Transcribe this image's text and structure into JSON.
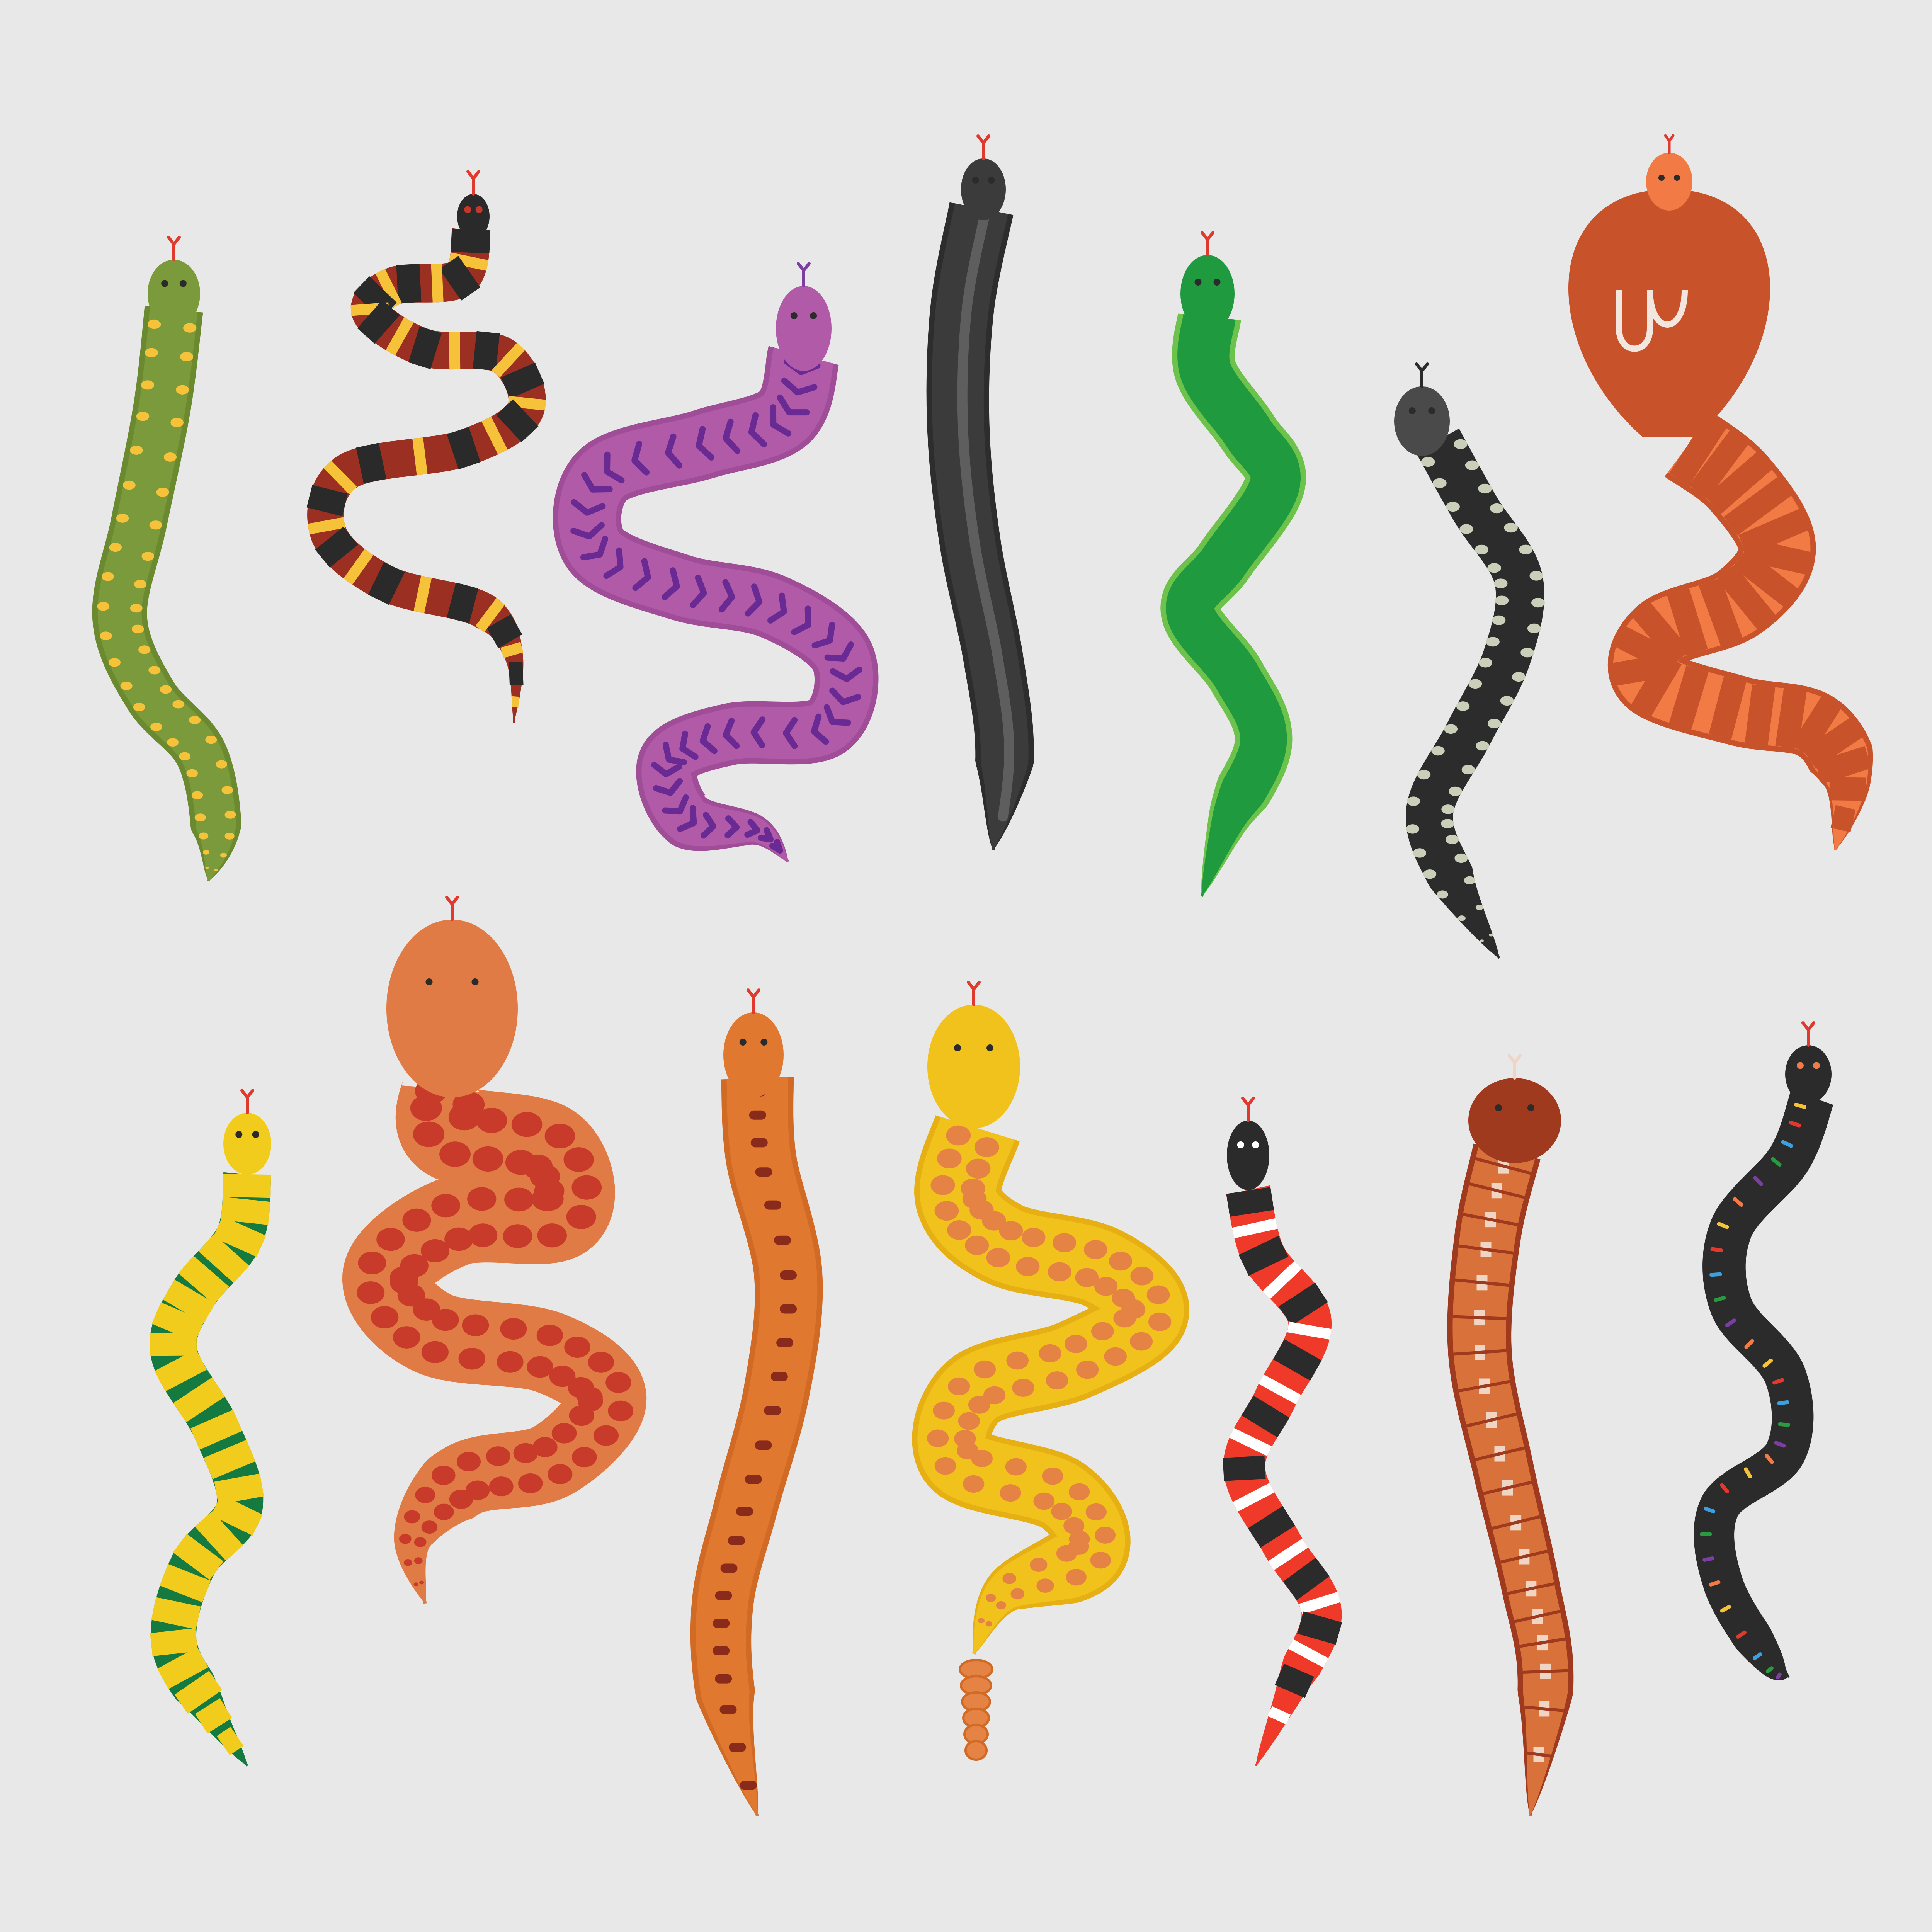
{
  "background": "#e8e8e8",
  "tongue_color": "#e03a2f",
  "snakes": [
    {
      "name": "olive-spotted-snake",
      "icon": "snake-icon",
      "body": "#7b9a3b",
      "outline": "#6b8a2f",
      "pattern": "spots",
      "pattern_color": "#f6c23a",
      "head": "#7b9a3b",
      "eyes": "#2b2b2b",
      "tongue": "#e03a2f"
    },
    {
      "name": "banded-milk-snake",
      "icon": "snake-icon",
      "body": "#9a2f22",
      "outline": "#9a2f22",
      "pattern": "bands",
      "pattern_color": "#2a2a2a",
      "pattern_color2": "#f6c23a",
      "head": "#2a2a2a",
      "eyes": "#c0392b",
      "tongue": "#e03a2f"
    },
    {
      "name": "purple-chevron-snake",
      "icon": "snake-icon",
      "body": "#b05aa8",
      "outline": "#a04d98",
      "pattern": "chevrons",
      "pattern_color": "#6a2a93",
      "head": "#b05aa8",
      "eyes": "#2b2b2b",
      "tongue": "#7a3fa0"
    },
    {
      "name": "black-mamba-snake",
      "icon": "snake-icon",
      "body": "#3b3b3b",
      "outline": "#2d2d2d",
      "pattern": "stripe",
      "pattern_color": "#5e5e5e",
      "head": "#3b3b3b",
      "eyes": "#2b2b2b",
      "tongue": "#e03a2f"
    },
    {
      "name": "green-vine-snake",
      "icon": "snake-icon",
      "body": "#1f9a3f",
      "outline": "#6cc24a",
      "pattern": "none",
      "pattern_color": "#1f9a3f",
      "head": "#1f9a3f",
      "eyes": "#2b2b2b",
      "tongue": "#e03a2f"
    },
    {
      "name": "black-dotted-snake",
      "icon": "snake-icon",
      "body": "#2c2c2c",
      "outline": "#2c2c2c",
      "pattern": "dots",
      "pattern_color": "#c9cfb8",
      "head": "#4a4a4a",
      "eyes": "#2b2b2b",
      "tongue": "#2b2b2b"
    },
    {
      "name": "orange-cobra",
      "icon": "cobra-icon",
      "body": "#f27a45",
      "outline": "#c8522a",
      "pattern": "bands",
      "pattern_color": "#c8522a",
      "head": "#f27a45",
      "eyes": "#2b2b2b",
      "tongue": "#e03a2f"
    },
    {
      "name": "green-yellow-banded-snake",
      "icon": "snake-icon",
      "body": "#157a3f",
      "outline": "#157a3f",
      "pattern": "bands",
      "pattern_color": "#f2cc1c",
      "head": "#f2cc1c",
      "eyes": "#2b2b2b",
      "tongue": "#e03a2f"
    },
    {
      "name": "corn-snake",
      "icon": "snake-icon",
      "body": "#e07b45",
      "outline": "#e07b45",
      "pattern": "blotches",
      "pattern_color": "#c83a2a",
      "head": "#e07b45",
      "eyes": "#2b2b2b",
      "tongue": "#e03a2f"
    },
    {
      "name": "orange-dashed-snake",
      "icon": "snake-icon",
      "body": "#e0782f",
      "outline": "#d06a25",
      "pattern": "dashes",
      "pattern_color": "#8a2a1a",
      "head": "#e0782f",
      "eyes": "#2b2b2b",
      "tongue": "#e03a2f"
    },
    {
      "name": "yellow-rattlesnake",
      "icon": "rattlesnake-icon",
      "body": "#f2c21c",
      "outline": "#e6b015",
      "pattern": "blotches",
      "pattern_color": "#e58345",
      "head": "#f2c21c",
      "eyes": "#2b2b2b",
      "tongue": "#e03a2f"
    },
    {
      "name": "red-coral-snake",
      "icon": "snake-icon",
      "body": "#ef3a2a",
      "outline": "#ef3a2a",
      "pattern": "bands",
      "pattern_color": "#2b2b2b",
      "pattern_color2": "#ffffff",
      "head": "#2b2b2b",
      "eyes": "#ffffff",
      "tongue": "#e03a2f"
    },
    {
      "name": "rust-striped-snake",
      "icon": "snake-icon",
      "body": "#d9713a",
      "outline": "#a03a1f",
      "pattern": "center-stripe",
      "pattern_color": "#f0d5c5",
      "head": "#a03a1f",
      "eyes": "#2b2b2b",
      "tongue": "#f0d5c5"
    },
    {
      "name": "black-rainbow-snake",
      "icon": "snake-icon",
      "body": "#2b2b2b",
      "outline": "#2b2b2b",
      "pattern": "rainbow-dashes",
      "pattern_color": "#f6c23a",
      "head": "#2b2b2b",
      "eyes": "#f27a45",
      "tongue": "#e03a2f"
    }
  ]
}
